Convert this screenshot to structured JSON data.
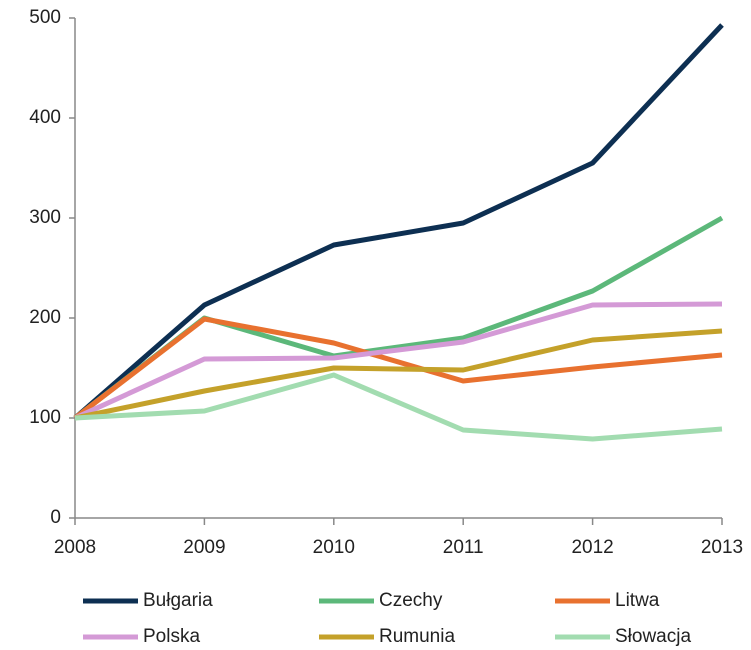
{
  "chart_data": {
    "type": "line",
    "x": [
      2008,
      2009,
      2010,
      2011,
      2012,
      2013
    ],
    "xlim": [
      2008,
      2013
    ],
    "xticks": [
      2008,
      2009,
      2010,
      2011,
      2012,
      2013
    ],
    "ylim": [
      0,
      500
    ],
    "yticks": [
      0,
      100,
      200,
      300,
      400,
      500
    ],
    "grid": false,
    "legend": "bottom",
    "series": [
      {
        "name": "Bułgaria",
        "color": "#0d2f52",
        "values": [
          100,
          213,
          273,
          295,
          355,
          493
        ]
      },
      {
        "name": "Czechy",
        "color": "#5cb87a",
        "values": [
          100,
          200,
          162,
          180,
          227,
          300
        ]
      },
      {
        "name": "Litwa",
        "color": "#e8712f",
        "values": [
          100,
          199,
          175,
          137,
          151,
          163
        ]
      },
      {
        "name": "Polska",
        "color": "#d49ad6",
        "values": [
          100,
          159,
          160,
          176,
          213,
          214
        ]
      },
      {
        "name": "Rumunia",
        "color": "#c4a12a",
        "values": [
          100,
          127,
          150,
          148,
          178,
          187
        ]
      },
      {
        "name": "Słowacja",
        "color": "#a2dcb0",
        "values": [
          100,
          107,
          143,
          88,
          79,
          89
        ]
      }
    ]
  }
}
